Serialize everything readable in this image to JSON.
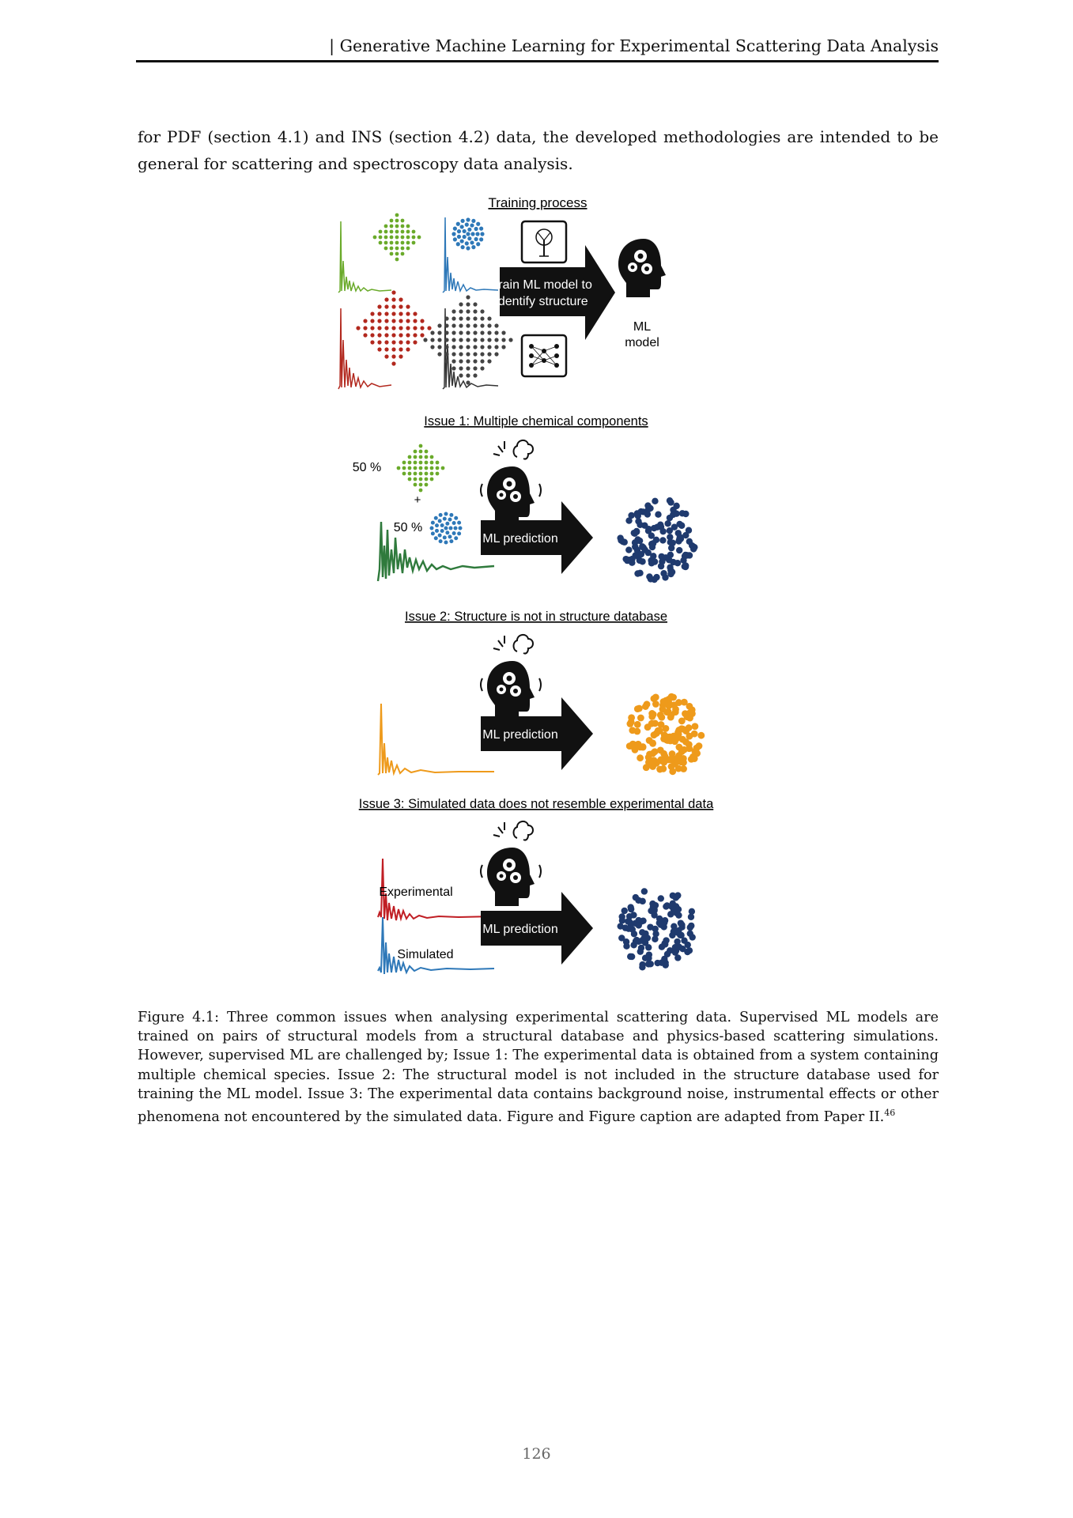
{
  "header": {
    "running_title": "| Generative Machine Learning for Experimental Scattering Data Analysis"
  },
  "intro_text": "for PDF (section 4.1) and INS (section 4.2) data, the developed methodologies are intended to be general for scattering and spectroscopy data analysis.",
  "figure": {
    "training": {
      "title": "Training process",
      "arrow_line1": "Train ML model to",
      "arrow_line2": "identify structure",
      "model_line1": "ML",
      "model_line2": "model"
    },
    "issue1": {
      "title": "Issue 1: Multiple chemical components",
      "fraction_a": "50 %",
      "plus": "+",
      "fraction_b": "50 %",
      "arrow": "ML prediction"
    },
    "issue2": {
      "title": "Issue 2: Structure is not in structure database",
      "arrow": "ML prediction"
    },
    "issue3": {
      "title": "Issue 3: Simulated data does not resemble experimental data",
      "experimental": "Experimental",
      "simulated": "Simulated",
      "arrow": "ML prediction"
    },
    "colors": {
      "green": "#6aaa2a",
      "blue": "#2e78b8",
      "red": "#b2281e",
      "gray": "#444444",
      "dark_green": "#2f7a3c",
      "orange": "#ee9a1b",
      "navy": "#1f3a6e"
    }
  },
  "caption": {
    "text": "Figure 4.1: Three common issues when analysing experimental scattering data. Supervised ML models are trained on pairs of structural models from a structural database and physics-based scattering simulations. However, supervised ML are challenged by; Issue 1: The experimental data is obtained from a system containing multiple chemical species. Issue 2: The structural model is not included in the structure database used for training the ML model. Issue 3: The experimental data contains background noise, instrumental effects or other phenomena not encountered by the simulated data. Figure and Figure caption are adapted from Paper II.",
    "ref": "46"
  },
  "page_number": "126"
}
